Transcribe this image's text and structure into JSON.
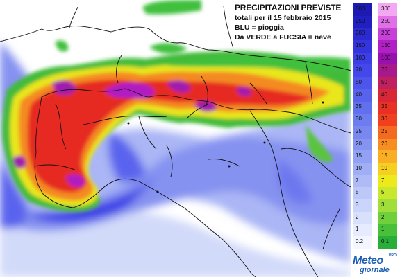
{
  "title": {
    "line1": "PRECIPITAZIONI PREVISTE",
    "line2": "totali per il 15 febbraio 2015",
    "line3": "BLU = pioggia",
    "line4": "Da VERDE a FUCSIA = neve"
  },
  "legend_rain": {
    "labels": [
      "300",
      "250",
      "200",
      "150",
      "100",
      "70",
      "50",
      "40",
      "35",
      "30",
      "25",
      "20",
      "15",
      "10",
      "7",
      "5",
      "3",
      "2",
      "1",
      "0.2"
    ],
    "colors": [
      "#1d1ab3",
      "#2020c2",
      "#2a2ad0",
      "#3434de",
      "#3c3ee6",
      "#4448ea",
      "#4d55ec",
      "#5863ed",
      "#6270ee",
      "#6d7cef",
      "#7888f0",
      "#8594f1",
      "#92a1f3",
      "#a0aef5",
      "#afbbf6",
      "#bdc8f8",
      "#cbd4fa",
      "#d8e0fb",
      "#e6ebfd",
      "#f3f6ff"
    ]
  },
  "legend_snow": {
    "labels": [
      "300",
      "250",
      "200",
      "150",
      "100",
      "70",
      "50",
      "40",
      "35",
      "30",
      "25",
      "20",
      "15",
      "10",
      "7",
      "5",
      "3",
      "2",
      "1",
      "0.1"
    ],
    "colors": [
      "#f2a9f2",
      "#e070e6",
      "#c740d8",
      "#b020c4",
      "#9a10ae",
      "#a81a8c",
      "#c02060",
      "#d82838",
      "#e83024",
      "#f04020",
      "#f46a20",
      "#f78e22",
      "#f9ae24",
      "#f6d020",
      "#ecea1a",
      "#c8e830",
      "#a0df3a",
      "#70d03c",
      "#48c03a",
      "#2aae3a"
    ]
  },
  "logo": {
    "line1": "Meteo",
    "line2": "giornale",
    "pro": "PRO"
  },
  "colors": {
    "rain": "#4d55ec",
    "snow_high": "#9a10ae",
    "snow_mid": "#e83024",
    "snow_low": "#48c03a",
    "background": "#ffffff"
  }
}
